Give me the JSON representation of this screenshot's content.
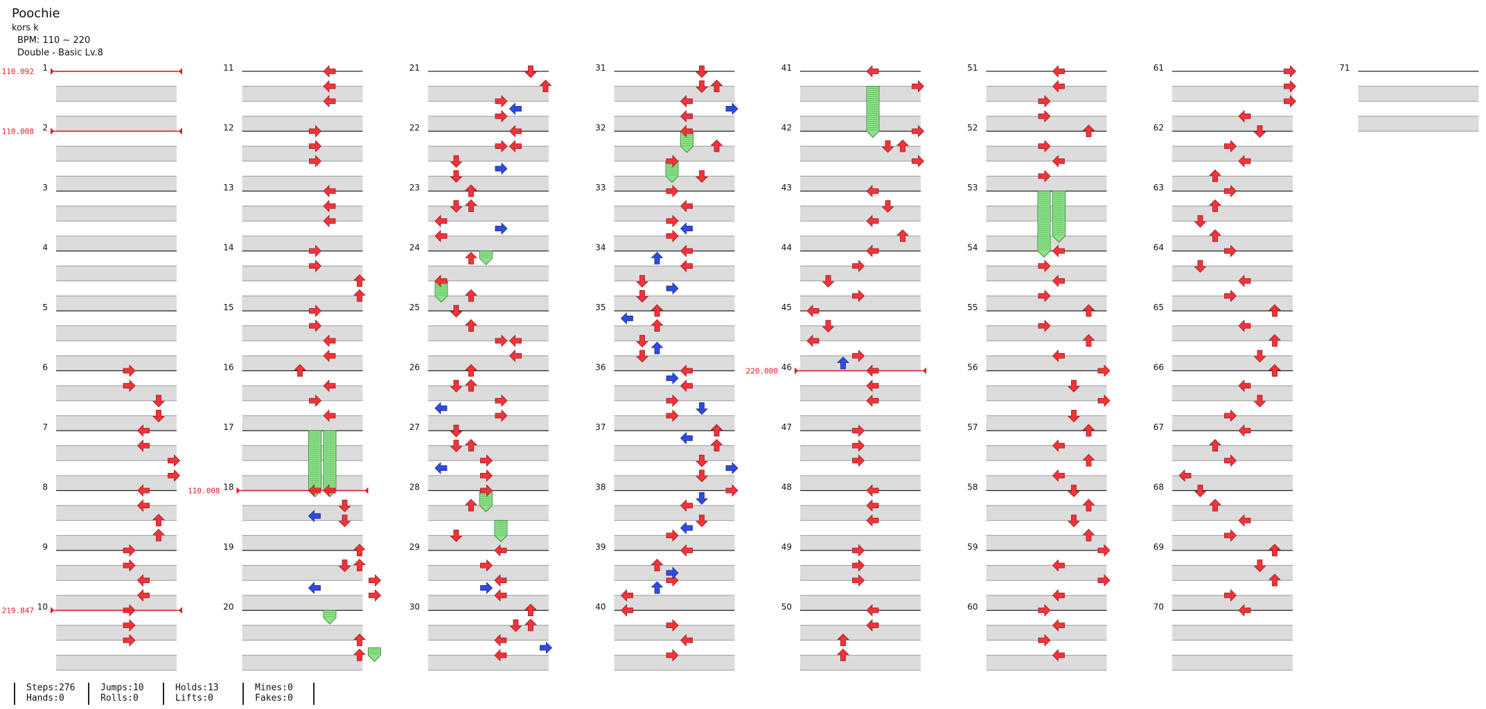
{
  "song": {
    "title": "Poochie",
    "artist": "kors k",
    "bpm": "BPM: 110 ~ 220",
    "difficulty": "Double - Basic Lv.8"
  },
  "colors": {
    "arrow_red": "#f2343a",
    "arrow_blue": "#2f4be0",
    "hold_green": "#8ee08a",
    "bpm_red": "#e31b23",
    "measure_line": "#222222",
    "beat_band": "#dcdcdc"
  },
  "chart_data": {
    "type": "table",
    "measures": [
      1,
      2,
      3,
      4,
      5,
      6,
      7,
      8,
      9,
      10,
      11,
      12,
      13,
      14,
      15,
      16,
      17,
      18,
      19,
      20,
      21,
      22,
      23,
      24,
      25,
      26,
      27,
      28,
      29,
      30,
      31,
      32,
      33,
      34,
      35,
      36,
      37,
      38,
      39,
      40,
      41,
      42,
      43,
      44,
      45,
      46,
      47,
      48,
      49,
      50,
      51,
      52,
      53,
      54,
      55,
      56,
      57,
      58,
      59,
      60,
      61,
      62,
      63,
      64,
      65,
      66,
      67,
      68,
      69,
      70,
      71
    ],
    "bpm_changes": [
      {
        "label": "110.092",
        "measure": 1,
        "beat": 0
      },
      {
        "label": "110.008",
        "measure": 2,
        "beat": 0
      },
      {
        "label": "219.847",
        "measure": 10,
        "beat": 0
      },
      {
        "label": "110.008",
        "measure": 18,
        "beat": 0
      },
      {
        "label": "220.000",
        "measure": 46,
        "beat": 0
      }
    ],
    "notes": [
      [
        6,
        0,
        4,
        "R"
      ],
      [
        6,
        1,
        4,
        "R"
      ],
      [
        6,
        2,
        6,
        "D"
      ],
      [
        6,
        3,
        6,
        "D"
      ],
      [
        7,
        0,
        5,
        "L"
      ],
      [
        7,
        1,
        5,
        "L"
      ],
      [
        7,
        2,
        7,
        "R"
      ],
      [
        7,
        3,
        7,
        "R"
      ],
      [
        8,
        0,
        5,
        "L"
      ],
      [
        8,
        1,
        5,
        "L"
      ],
      [
        8,
        2,
        6,
        "U"
      ],
      [
        8,
        3,
        6,
        "U"
      ],
      [
        9,
        0,
        4,
        "R"
      ],
      [
        9,
        1,
        4,
        "R"
      ],
      [
        9,
        2,
        5,
        "L"
      ],
      [
        9,
        3,
        5,
        "L"
      ],
      [
        10,
        0,
        4,
        "R"
      ],
      [
        10,
        1,
        4,
        "R"
      ],
      [
        10,
        2,
        4,
        "R"
      ],
      [
        11,
        0,
        5,
        "L"
      ],
      [
        11,
        1,
        5,
        "L"
      ],
      [
        11,
        2,
        5,
        "L"
      ],
      [
        12,
        0,
        4,
        "R"
      ],
      [
        12,
        1,
        4,
        "R"
      ],
      [
        12,
        2,
        4,
        "R"
      ],
      [
        13,
        0,
        5,
        "L"
      ],
      [
        13,
        1,
        5,
        "L"
      ],
      [
        13,
        2,
        5,
        "L"
      ],
      [
        14,
        0,
        4,
        "R"
      ],
      [
        14,
        1,
        4,
        "R"
      ],
      [
        14,
        2,
        7,
        "U"
      ],
      [
        14,
        3,
        7,
        "U"
      ],
      [
        15,
        0,
        4,
        "R"
      ],
      [
        15,
        1,
        4,
        "R"
      ],
      [
        15,
        2,
        5,
        "L"
      ],
      [
        15,
        3,
        5,
        "L"
      ],
      [
        16,
        0,
        3,
        "U"
      ],
      [
        16,
        1,
        5,
        "L"
      ],
      [
        16,
        2,
        4,
        "R"
      ],
      [
        16,
        3,
        5,
        "L"
      ],
      [
        18,
        0,
        4,
        "L"
      ],
      [
        18,
        0,
        5,
        "L"
      ],
      [
        18,
        1,
        6,
        "D"
      ],
      [
        18,
        2,
        6,
        "D"
      ],
      [
        18,
        1.7,
        4,
        "L",
        "b"
      ],
      [
        19,
        0,
        7,
        "U"
      ],
      [
        19,
        1,
        6,
        "D"
      ],
      [
        19,
        1,
        7,
        "U"
      ],
      [
        19,
        2,
        8,
        "R"
      ],
      [
        19,
        3,
        8,
        "R"
      ],
      [
        19,
        2.5,
        4,
        "L",
        "b"
      ],
      [
        20,
        2,
        7,
        "U"
      ],
      [
        20,
        3,
        7,
        "U"
      ],
      [
        21,
        0,
        6,
        "D"
      ],
      [
        21,
        1,
        7,
        "U"
      ],
      [
        21,
        2,
        4,
        "R"
      ],
      [
        21,
        3,
        4,
        "R"
      ],
      [
        21,
        2.5,
        5,
        "L",
        "b"
      ],
      [
        22,
        0,
        5,
        "L"
      ],
      [
        22,
        1,
        4,
        "R"
      ],
      [
        22,
        1,
        5,
        "L"
      ],
      [
        22,
        2,
        1,
        "D"
      ],
      [
        22,
        3,
        1,
        "D"
      ],
      [
        22,
        2.5,
        4,
        "R",
        "b"
      ],
      [
        23,
        0,
        2,
        "U"
      ],
      [
        23,
        1,
        1,
        "D"
      ],
      [
        23,
        1,
        2,
        "U"
      ],
      [
        23,
        2,
        0,
        "L"
      ],
      [
        23,
        3,
        0,
        "L"
      ],
      [
        23,
        2.5,
        4,
        "R",
        "b"
      ],
      [
        24,
        0.5,
        2,
        "U"
      ],
      [
        24,
        2,
        0,
        "L"
      ],
      [
        24,
        3,
        2,
        "U"
      ],
      [
        25,
        0,
        1,
        "D"
      ],
      [
        25,
        1,
        2,
        "U"
      ],
      [
        25,
        2,
        4,
        "R"
      ],
      [
        25,
        2,
        5,
        "L"
      ],
      [
        25,
        3,
        5,
        "L"
      ],
      [
        26,
        0,
        2,
        "U"
      ],
      [
        26,
        1,
        1,
        "D"
      ],
      [
        26,
        1,
        2,
        "U"
      ],
      [
        26,
        2,
        4,
        "R"
      ],
      [
        26,
        3,
        4,
        "R"
      ],
      [
        26,
        2.5,
        0,
        "L",
        "b"
      ],
      [
        27,
        0,
        1,
        "D"
      ],
      [
        27,
        1,
        1,
        "D"
      ],
      [
        27,
        1,
        2,
        "U"
      ],
      [
        27,
        2,
        3,
        "R"
      ],
      [
        27,
        3,
        3,
        "R"
      ],
      [
        27,
        2.5,
        0,
        "L",
        "b"
      ],
      [
        28,
        0,
        3,
        "R"
      ],
      [
        28,
        1,
        2,
        "U"
      ],
      [
        28,
        3,
        1,
        "D"
      ],
      [
        29,
        0,
        4,
        "L"
      ],
      [
        29,
        1,
        3,
        "R"
      ],
      [
        29,
        2,
        4,
        "L"
      ],
      [
        29,
        2.5,
        3,
        "R",
        "b"
      ],
      [
        29,
        3,
        4,
        "L"
      ],
      [
        30,
        0,
        6,
        "U"
      ],
      [
        30,
        1,
        5,
        "D"
      ],
      [
        30,
        1,
        6,
        "U"
      ],
      [
        30,
        2,
        4,
        "L"
      ],
      [
        30,
        3,
        4,
        "L"
      ],
      [
        30,
        2.5,
        7,
        "R",
        "b"
      ],
      [
        31,
        0,
        5,
        "D"
      ],
      [
        31,
        1,
        5,
        "D"
      ],
      [
        31,
        1,
        6,
        "U"
      ],
      [
        31,
        2,
        4,
        "L"
      ],
      [
        31,
        3,
        4,
        "L"
      ],
      [
        31,
        2.5,
        7,
        "R",
        "b"
      ],
      [
        32,
        0,
        4,
        "L"
      ],
      [
        32,
        1,
        6,
        "U"
      ],
      [
        32,
        2,
        3,
        "R"
      ],
      [
        32,
        3,
        5,
        "D"
      ],
      [
        33,
        0,
        3,
        "R"
      ],
      [
        33,
        1,
        4,
        "L"
      ],
      [
        33,
        2,
        3,
        "R"
      ],
      [
        33,
        3,
        3,
        "R"
      ],
      [
        33,
        2.5,
        4,
        "L",
        "b"
      ],
      [
        34,
        0,
        4,
        "L"
      ],
      [
        34,
        1,
        4,
        "L"
      ],
      [
        34,
        2,
        1,
        "D"
      ],
      [
        34,
        3,
        1,
        "D"
      ],
      [
        34,
        0.5,
        2,
        "U",
        "b"
      ],
      [
        34,
        2.5,
        3,
        "R",
        "b"
      ],
      [
        35,
        0,
        2,
        "U"
      ],
      [
        35,
        1,
        2,
        "U"
      ],
      [
        35,
        2,
        1,
        "D"
      ],
      [
        35,
        3,
        1,
        "D"
      ],
      [
        35,
        0.5,
        0,
        "L",
        "b"
      ],
      [
        35,
        2.5,
        2,
        "U",
        "b"
      ],
      [
        36,
        0,
        4,
        "L"
      ],
      [
        36,
        1,
        4,
        "L"
      ],
      [
        36,
        2,
        3,
        "R"
      ],
      [
        36,
        3,
        3,
        "R"
      ],
      [
        36,
        0.5,
        3,
        "R",
        "b"
      ],
      [
        36,
        2.5,
        5,
        "D",
        "b"
      ],
      [
        37,
        0,
        6,
        "U"
      ],
      [
        37,
        1,
        6,
        "U"
      ],
      [
        37,
        2,
        5,
        "D"
      ],
      [
        37,
        3,
        5,
        "D"
      ],
      [
        37,
        0.5,
        4,
        "L",
        "b"
      ],
      [
        37,
        2.5,
        7,
        "R",
        "b"
      ],
      [
        38,
        0,
        7,
        "R"
      ],
      [
        38,
        1,
        4,
        "L"
      ],
      [
        38,
        2,
        5,
        "D"
      ],
      [
        38,
        3,
        3,
        "R"
      ],
      [
        38,
        0.5,
        5,
        "D",
        "b"
      ],
      [
        38,
        2.5,
        4,
        "L",
        "b"
      ],
      [
        39,
        0,
        4,
        "L"
      ],
      [
        39,
        1,
        2,
        "U"
      ],
      [
        39,
        2,
        3,
        "R"
      ],
      [
        39,
        3,
        0,
        "L"
      ],
      [
        39,
        1.5,
        3,
        "R",
        "b"
      ],
      [
        39,
        2.5,
        2,
        "U",
        "b"
      ],
      [
        40,
        0,
        0,
        "L"
      ],
      [
        40,
        1,
        3,
        "R"
      ],
      [
        40,
        2,
        4,
        "L"
      ],
      [
        40,
        3,
        3,
        "R"
      ],
      [
        41,
        0,
        4,
        "L"
      ],
      [
        41,
        1,
        7,
        "R"
      ],
      [
        42,
        0,
        7,
        "R"
      ],
      [
        42,
        1,
        5,
        "D"
      ],
      [
        42,
        1,
        6,
        "U"
      ],
      [
        42,
        2,
        7,
        "R"
      ],
      [
        43,
        0,
        4,
        "L"
      ],
      [
        43,
        1,
        5,
        "D"
      ],
      [
        43,
        2,
        4,
        "L"
      ],
      [
        43,
        3,
        6,
        "U"
      ],
      [
        44,
        0,
        4,
        "L"
      ],
      [
        44,
        1,
        3,
        "R"
      ],
      [
        44,
        2,
        1,
        "D"
      ],
      [
        44,
        3,
        3,
        "R"
      ],
      [
        45,
        0,
        0,
        "L"
      ],
      [
        45,
        1,
        1,
        "D"
      ],
      [
        45,
        2,
        0,
        "L"
      ],
      [
        45,
        3,
        3,
        "R"
      ],
      [
        45,
        3.5,
        2,
        "U",
        "b"
      ],
      [
        46,
        0,
        4,
        "L"
      ],
      [
        46,
        1,
        4,
        "L"
      ],
      [
        46,
        2,
        4,
        "L"
      ],
      [
        47,
        0,
        3,
        "R"
      ],
      [
        47,
        1,
        3,
        "R"
      ],
      [
        47,
        2,
        3,
        "R"
      ],
      [
        48,
        0,
        4,
        "L"
      ],
      [
        48,
        1,
        4,
        "L"
      ],
      [
        48,
        2,
        4,
        "L"
      ],
      [
        49,
        0,
        3,
        "R"
      ],
      [
        49,
        1,
        3,
        "R"
      ],
      [
        49,
        2,
        3,
        "R"
      ],
      [
        50,
        0,
        4,
        "L"
      ],
      [
        50,
        1,
        4,
        "L"
      ],
      [
        50,
        2,
        2,
        "U"
      ],
      [
        50,
        3,
        2,
        "U"
      ],
      [
        51,
        0,
        4,
        "L"
      ],
      [
        51,
        1,
        4,
        "L"
      ],
      [
        51,
        2,
        3,
        "R"
      ],
      [
        51,
        3,
        3,
        "R"
      ],
      [
        52,
        0,
        6,
        "U"
      ],
      [
        52,
        1,
        3,
        "R"
      ],
      [
        52,
        2,
        4,
        "L"
      ],
      [
        52,
        3,
        3,
        "R"
      ],
      [
        54,
        0,
        4,
        "L"
      ],
      [
        54,
        1,
        3,
        "R"
      ],
      [
        54,
        2,
        4,
        "L"
      ],
      [
        54,
        3,
        3,
        "R"
      ],
      [
        55,
        0,
        6,
        "U"
      ],
      [
        55,
        1,
        3,
        "R"
      ],
      [
        55,
        2,
        6,
        "U"
      ],
      [
        55,
        3,
        4,
        "L"
      ],
      [
        56,
        0,
        7,
        "R"
      ],
      [
        56,
        1,
        5,
        "D"
      ],
      [
        56,
        2,
        7,
        "R"
      ],
      [
        56,
        3,
        5,
        "D"
      ],
      [
        57,
        0,
        6,
        "U"
      ],
      [
        57,
        1,
        4,
        "L"
      ],
      [
        57,
        2,
        6,
        "U"
      ],
      [
        57,
        3,
        4,
        "L"
      ],
      [
        58,
        0,
        5,
        "D"
      ],
      [
        58,
        1,
        6,
        "U"
      ],
      [
        58,
        2,
        5,
        "D"
      ],
      [
        58,
        3,
        6,
        "U"
      ],
      [
        59,
        0,
        7,
        "R"
      ],
      [
        59,
        1,
        4,
        "L"
      ],
      [
        59,
        2,
        7,
        "R"
      ],
      [
        59,
        3,
        4,
        "L"
      ],
      [
        60,
        0,
        3,
        "R"
      ],
      [
        60,
        1,
        4,
        "L"
      ],
      [
        60,
        2,
        3,
        "R"
      ],
      [
        60,
        3,
        4,
        "L"
      ],
      [
        61,
        0,
        7,
        "R"
      ],
      [
        61,
        1,
        7,
        "R"
      ],
      [
        61,
        2,
        7,
        "R"
      ],
      [
        61,
        3,
        4,
        "L"
      ],
      [
        62,
        0,
        5,
        "D"
      ],
      [
        62,
        1,
        3,
        "R"
      ],
      [
        62,
        2,
        4,
        "L"
      ],
      [
        62,
        3,
        2,
        "U"
      ],
      [
        63,
        0,
        3,
        "R"
      ],
      [
        63,
        1,
        2,
        "U"
      ],
      [
        63,
        2,
        1,
        "D"
      ],
      [
        63,
        3,
        2,
        "U"
      ],
      [
        64,
        0,
        3,
        "R"
      ],
      [
        64,
        1,
        1,
        "D"
      ],
      [
        64,
        2,
        4,
        "L"
      ],
      [
        64,
        3,
        3,
        "R"
      ],
      [
        65,
        0,
        6,
        "U"
      ],
      [
        65,
        1,
        4,
        "L"
      ],
      [
        65,
        2,
        6,
        "U"
      ],
      [
        65,
        3,
        5,
        "D"
      ],
      [
        66,
        0,
        6,
        "U"
      ],
      [
        66,
        1,
        4,
        "L"
      ],
      [
        66,
        2,
        5,
        "D"
      ],
      [
        66,
        3,
        3,
        "R"
      ],
      [
        67,
        0,
        4,
        "L"
      ],
      [
        67,
        1,
        2,
        "U"
      ],
      [
        67,
        2,
        3,
        "R"
      ],
      [
        67,
        3,
        0,
        "L"
      ],
      [
        68,
        0,
        1,
        "D"
      ],
      [
        68,
        1,
        2,
        "U"
      ],
      [
        68,
        2,
        4,
        "L"
      ],
      [
        68,
        3,
        3,
        "R"
      ],
      [
        69,
        0,
        6,
        "U"
      ],
      [
        69,
        1,
        5,
        "D"
      ],
      [
        69,
        2,
        6,
        "U"
      ],
      [
        69,
        3,
        3,
        "R"
      ],
      [
        70,
        0,
        4,
        "L"
      ]
    ],
    "holds": [
      [
        17,
        0,
        4,
        18,
        0
      ],
      [
        17,
        0,
        5,
        18,
        0
      ],
      [
        20,
        0,
        5,
        20,
        0.5
      ],
      [
        20,
        2.5,
        8,
        20,
        3
      ],
      [
        24,
        0,
        3,
        24,
        0.5
      ],
      [
        24,
        2,
        0,
        24,
        3
      ],
      [
        28,
        0,
        3,
        28,
        1
      ],
      [
        28,
        2,
        4,
        28,
        3
      ],
      [
        32,
        0,
        4,
        32,
        1
      ],
      [
        32,
        2,
        3,
        32,
        3
      ],
      [
        41,
        1,
        4,
        42,
        0
      ],
      [
        53,
        0,
        3,
        54,
        0
      ],
      [
        53,
        0,
        4,
        53,
        3
      ]
    ]
  },
  "stats": {
    "steps": "Steps:276",
    "hands": "Hands:0",
    "jumps": "Jumps:10",
    "rolls": "Rolls:0",
    "holds": "Holds:13",
    "lifts": "Lifts:0",
    "mines": "Mines:0",
    "fakes": "Fakes:0"
  }
}
